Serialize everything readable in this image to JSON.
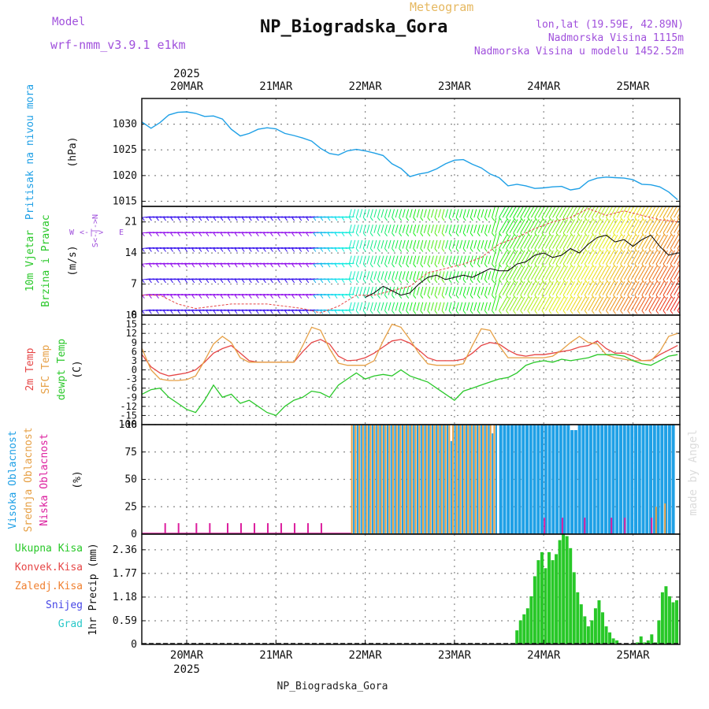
{
  "header": {
    "title": "NP_Biogradska_Gora",
    "subtitle": "Meteogram",
    "model_label": "Model",
    "model_name": "wrf-nmm_v3.9.1 e1km",
    "lonlat": "lon,lat (19.59E, 42.89N)",
    "altitude": "Nadmorska Visina 1115m",
    "model_altitude": "Nadmorska Visina u modelu 1452.52m",
    "year_top": "2025",
    "year_bottom": "2025",
    "footer": "NP_Biogradska_Gora",
    "watermark": "made by Angel"
  },
  "colors": {
    "pressure": "#1fa0e6",
    "temp2m": "#e64646",
    "sfc": "#e6a046",
    "dew": "#2ac82a",
    "high": "#1fa0e6",
    "mid": "#e6a046",
    "low": "#dc1e9e",
    "precip": "#28c828",
    "purple": "#a050dc",
    "gust": "#e64646",
    "grid": "#888888"
  },
  "chart_data": [
    {
      "type": "line",
      "panel": "pressure",
      "title": "Pritisak na nivou mora",
      "ylabel": "(hPa)",
      "ylim": [
        1014,
        1035
      ],
      "yticks": [
        "1015",
        "1020",
        "1025",
        "1030"
      ],
      "categories": [
        "20MAR",
        "21MAR",
        "22MAR",
        "23MAR",
        "24MAR",
        "25MAR"
      ],
      "grid": true,
      "series": [
        {
          "name": "Pritisak na nivou mora",
          "x": [
            -0.5,
            -0.4,
            -0.3,
            -0.2,
            -0.1,
            0,
            0.1,
            0.2,
            0.3,
            0.4,
            0.5,
            0.6,
            0.7,
            0.8,
            0.9,
            1,
            1.1,
            1.2,
            1.3,
            1.4,
            1.5,
            1.6,
            1.7,
            1.8,
            1.9,
            2,
            2.1,
            2.2,
            2.3,
            2.4,
            2.5,
            2.6,
            2.7,
            2.8,
            2.9,
            3,
            3.1,
            3.2,
            3.3,
            3.4,
            3.5,
            3.6,
            3.7,
            3.8,
            3.9,
            4,
            4.1,
            4.2,
            4.3,
            4.4,
            4.5,
            4.6,
            4.7,
            4.8,
            4.9,
            5,
            5.1,
            5.2,
            5.3,
            5.4,
            5.5
          ],
          "y": [
            1030.4,
            1029.2,
            1030.3,
            1031.8,
            1032.3,
            1032.4,
            1032.1,
            1031.5,
            1031.6,
            1031,
            1029,
            1027.7,
            1028.2,
            1029,
            1029.3,
            1029.1,
            1028.2,
            1027.8,
            1027.3,
            1026.7,
            1025.3,
            1024.3,
            1024,
            1024.8,
            1025.1,
            1024.8,
            1024.4,
            1023.9,
            1022.3,
            1021.4,
            1019.8,
            1020.3,
            1020.6,
            1021.3,
            1022.3,
            1023,
            1023.1,
            1022.2,
            1021.5,
            1020.3,
            1019.6,
            1018,
            1018.3,
            1018,
            1017.5,
            1017.6,
            1017.8,
            1017.9,
            1017.2,
            1017.5,
            1018.9,
            1019.5,
            1019.7,
            1019.6,
            1019.5,
            1019.2,
            1018.3,
            1018.2,
            1017.8,
            1016.8,
            1015.3
          ]
        }
      ]
    },
    {
      "type": "line",
      "panel": "wind",
      "title": "10m Vjetar Brzina i Pravac",
      "ylabel": "(m/s)",
      "ylim": [
        0,
        24.5
      ],
      "yticks": [
        "0",
        "7",
        "14",
        "21"
      ],
      "legend_axis": [
        "W",
        "<-|->",
        "E"
      ],
      "legend_axis_v": "S<-|->N",
      "grid": true,
      "series": [
        {
          "name": "speed",
          "x": [
            2,
            2.1,
            2.2,
            2.3,
            2.4,
            2.5,
            2.6,
            2.7,
            2.8,
            2.9,
            3,
            3.1,
            3.2,
            3.3,
            3.4,
            3.5,
            3.6,
            3.7,
            3.8,
            3.9,
            4,
            4.1,
            4.2,
            4.3,
            4.4,
            4.5,
            4.6,
            4.7,
            4.8,
            4.9,
            5,
            5.1,
            5.2,
            5.3,
            5.4,
            5.5
          ],
          "y": [
            4,
            5,
            6.5,
            5.5,
            4.5,
            5,
            7,
            8.5,
            9,
            8,
            8.5,
            9,
            8.5,
            9.5,
            10.5,
            10,
            10,
            11.5,
            12,
            13.5,
            14,
            13,
            13.5,
            15,
            14,
            16,
            17.5,
            18,
            16.5,
            17,
            15.5,
            17,
            18,
            15.5,
            13.5,
            14
          ]
        },
        {
          "name": "gust",
          "x": [
            -0.5,
            -0.3,
            -0.1,
            0.1,
            0.3,
            0.5,
            0.7,
            0.9,
            1.1,
            1.3,
            1.5,
            1.7,
            1.9,
            2.1,
            2.3,
            2.5,
            2.7,
            2.9,
            3.1,
            3.3,
            3.5,
            3.7,
            3.9,
            4.1,
            4.3,
            4.5,
            4.7,
            4.9,
            5.1,
            5.3,
            5.5
          ],
          "y": [
            4.5,
            4.5,
            2.5,
            1.5,
            2,
            2.5,
            2.5,
            2.5,
            2,
            1.5,
            0.5,
            2,
            4.5,
            4.5,
            5.5,
            6.5,
            9.5,
            10.5,
            11.5,
            13,
            16,
            17.5,
            19.5,
            21,
            22,
            24,
            22.5,
            23.5,
            22.5,
            21.5,
            21
          ]
        }
      ]
    },
    {
      "type": "line",
      "panel": "temperature",
      "ylabel": "(C)",
      "ylim": [
        -18,
        18
      ],
      "yticks": [
        "-18",
        "-15",
        "-12",
        "-9",
        "-6",
        "-3",
        "0",
        "3",
        "6",
        "9",
        "12",
        "15",
        "18"
      ],
      "legend": [
        "2m Temp",
        "SFC Temp",
        "dewpt Temp"
      ],
      "grid": true,
      "series": [
        {
          "name": "2m Temp",
          "x": [
            -0.5,
            -0.4,
            -0.3,
            -0.2,
            -0.1,
            0,
            0.1,
            0.2,
            0.3,
            0.4,
            0.5,
            0.6,
            0.7,
            0.8,
            0.9,
            1,
            1.1,
            1.2,
            1.3,
            1.4,
            1.5,
            1.6,
            1.7,
            1.8,
            1.9,
            2,
            2.1,
            2.2,
            2.3,
            2.4,
            2.5,
            2.6,
            2.7,
            2.8,
            2.9,
            3,
            3.1,
            3.2,
            3.3,
            3.4,
            3.5,
            3.6,
            3.7,
            3.8,
            3.9,
            4,
            4.1,
            4.2,
            4.3,
            4.4,
            4.5,
            4.6,
            4.7,
            4.8,
            4.9,
            5,
            5.1,
            5.2,
            5.3,
            5.4,
            5.5
          ],
          "y": [
            5,
            1,
            -1,
            -2,
            -1.5,
            -1,
            0,
            2.5,
            5.5,
            7,
            8,
            5.5,
            3,
            2.5,
            2.5,
            2.5,
            2.5,
            2.5,
            6,
            9,
            10,
            8.5,
            4.5,
            3,
            3.2,
            4,
            5.5,
            7.5,
            9.5,
            10,
            8.8,
            6.5,
            4,
            3,
            3,
            3,
            3.5,
            5.5,
            8,
            9,
            8.5,
            6.5,
            5,
            4.5,
            5,
            5,
            5.5,
            6,
            6.5,
            7.5,
            8,
            9.5,
            7,
            5.5,
            5.5,
            4.5,
            3,
            3.2,
            5,
            6.5,
            8
          ]
        },
        {
          "name": "SFC Temp",
          "x": [
            -0.5,
            -0.4,
            -0.3,
            -0.2,
            -0.1,
            0,
            0.1,
            0.2,
            0.3,
            0.4,
            0.5,
            0.6,
            0.7,
            0.8,
            0.9,
            1,
            1.1,
            1.2,
            1.3,
            1.4,
            1.5,
            1.6,
            1.7,
            1.8,
            1.9,
            2,
            2.1,
            2.2,
            2.3,
            2.4,
            2.5,
            2.6,
            2.7,
            2.8,
            2.9,
            3,
            3.1,
            3.2,
            3.3,
            3.4,
            3.5,
            3.6,
            3.7,
            3.8,
            3.9,
            4,
            4.1,
            4.2,
            4.3,
            4.4,
            4.5,
            4.6,
            4.7,
            4.8,
            4.9,
            5,
            5.1,
            5.2,
            5.3,
            5.4,
            5.5
          ],
          "y": [
            7,
            0,
            -3,
            -3.5,
            -3.5,
            -3.2,
            -2,
            3,
            8.5,
            11,
            9,
            4,
            2.5,
            2.5,
            2.5,
            2.5,
            2.5,
            2.5,
            8,
            14,
            13,
            7,
            2.2,
            1.5,
            1.5,
            1.5,
            3,
            9.5,
            15,
            14,
            10,
            5.5,
            2,
            1.5,
            1.5,
            1.5,
            2,
            8,
            13.5,
            13,
            8,
            4,
            4,
            4,
            4,
            4,
            4.5,
            6.5,
            9,
            11,
            9,
            8.5,
            5,
            4,
            3.5,
            3,
            3,
            3,
            6,
            11,
            12
          ]
        },
        {
          "name": "dewpt Temp",
          "x": [
            -0.5,
            -0.4,
            -0.3,
            -0.2,
            -0.1,
            0,
            0.1,
            0.2,
            0.3,
            0.4,
            0.5,
            0.6,
            0.7,
            0.8,
            0.9,
            1,
            1.1,
            1.2,
            1.3,
            1.4,
            1.5,
            1.6,
            1.7,
            1.8,
            1.9,
            2,
            2.1,
            2.2,
            2.3,
            2.4,
            2.5,
            2.6,
            2.7,
            2.8,
            2.9,
            3,
            3.1,
            3.2,
            3.3,
            3.4,
            3.5,
            3.6,
            3.7,
            3.8,
            3.9,
            4,
            4.1,
            4.2,
            4.3,
            4.4,
            4.5,
            4.6,
            4.7,
            4.8,
            4.9,
            5,
            5.1,
            5.2,
            5.3,
            5.4,
            5.5
          ],
          "y": [
            -8,
            -6.5,
            -6,
            -9,
            -11,
            -13,
            -14,
            -10,
            -5,
            -9,
            -8,
            -11,
            -10,
            -12,
            -14,
            -15,
            -12,
            -10,
            -9,
            -7,
            -7.5,
            -9,
            -5,
            -3,
            -1,
            -3,
            -2,
            -1.5,
            -2,
            0,
            -2,
            -3,
            -4,
            -6,
            -8,
            -10,
            -7,
            -6,
            -5,
            -4,
            -3,
            -2.5,
            -1,
            1.5,
            2.5,
            3,
            2.5,
            3.5,
            3,
            3.5,
            4,
            5,
            5,
            5,
            4.5,
            3,
            2,
            1.5,
            3,
            4.5,
            5
          ]
        }
      ]
    },
    {
      "type": "bar",
      "panel": "cloud",
      "ylabel": "(%)",
      "ylim": [
        0,
        100
      ],
      "yticks": [
        "0",
        "25",
        "50",
        "75",
        "100"
      ],
      "legend": [
        "Visoka Oblacnost",
        "Srednja Oblacnost",
        "Niska Oblacnost"
      ],
      "grid": true,
      "series": [
        {
          "name": "Visoka Oblacnost",
          "x_start": 1.85,
          "x_end": 5.45,
          "typical": 100,
          "note_dips": [
            [
              2.95,
              85
            ],
            [
              3.4,
              92
            ],
            [
              4.3,
              95
            ]
          ]
        },
        {
          "name": "Srednja Oblacnost",
          "x_start": 1.85,
          "x_end": 3.45,
          "typical": 100,
          "late": [
            [
              5.25,
              25
            ],
            [
              5.35,
              28
            ]
          ]
        },
        {
          "name": "Niska Oblacnost",
          "ticks_x": [
            -0.25,
            -0.1,
            0.1,
            0.25,
            0.45,
            0.6,
            0.75,
            0.9,
            1.05,
            1.2,
            1.35,
            1.5
          ],
          "ticks_y": 10,
          "late_x": [
            4,
            4.2,
            4.45,
            4.75,
            4.9,
            5.2
          ],
          "late_y": 15
        }
      ]
    },
    {
      "type": "bar",
      "panel": "precip",
      "ylabel": "1hr Precip (mm)",
      "ylim": [
        0,
        2.75
      ],
      "yticks": [
        "0",
        "0.59",
        "1.18",
        "1.77",
        "2.36"
      ],
      "legend": [
        "Ukupna Kisa",
        "Konvek.Kisa",
        "Zaledj.Kisa",
        "Snijeg",
        "Grad"
      ],
      "categories": [
        "20MAR",
        "21MAR",
        "22MAR",
        "23MAR",
        "24MAR",
        "25MAR"
      ],
      "grid": true,
      "series": [
        {
          "name": "Ukupna Kisa",
          "x": [
            3.7,
            3.74,
            3.78,
            3.82,
            3.86,
            3.9,
            3.94,
            3.98,
            4.02,
            4.06,
            4.1,
            4.14,
            4.18,
            4.22,
            4.26,
            4.3,
            4.34,
            4.38,
            4.42,
            4.46,
            4.5,
            4.54,
            4.58,
            4.62,
            4.66,
            4.7,
            4.74,
            4.78,
            4.82,
            5.05,
            5.09,
            5.13,
            5.17,
            5.21,
            5.25,
            5.29,
            5.33,
            5.37,
            5.41,
            5.45,
            5.49
          ],
          "y": [
            0.35,
            0.6,
            0.75,
            0.9,
            1.2,
            1.7,
            2.1,
            2.3,
            1.9,
            2.3,
            2.1,
            2.25,
            2.6,
            2.85,
            2.7,
            2.4,
            1.8,
            1.3,
            1.0,
            0.7,
            0.45,
            0.6,
            0.9,
            1.1,
            0.8,
            0.45,
            0.3,
            0.15,
            0.1,
            0.05,
            0.2,
            0.05,
            0.1,
            0.25,
            0.05,
            0.6,
            1.3,
            1.45,
            1.2,
            1.05,
            1.1
          ]
        }
      ]
    }
  ]
}
